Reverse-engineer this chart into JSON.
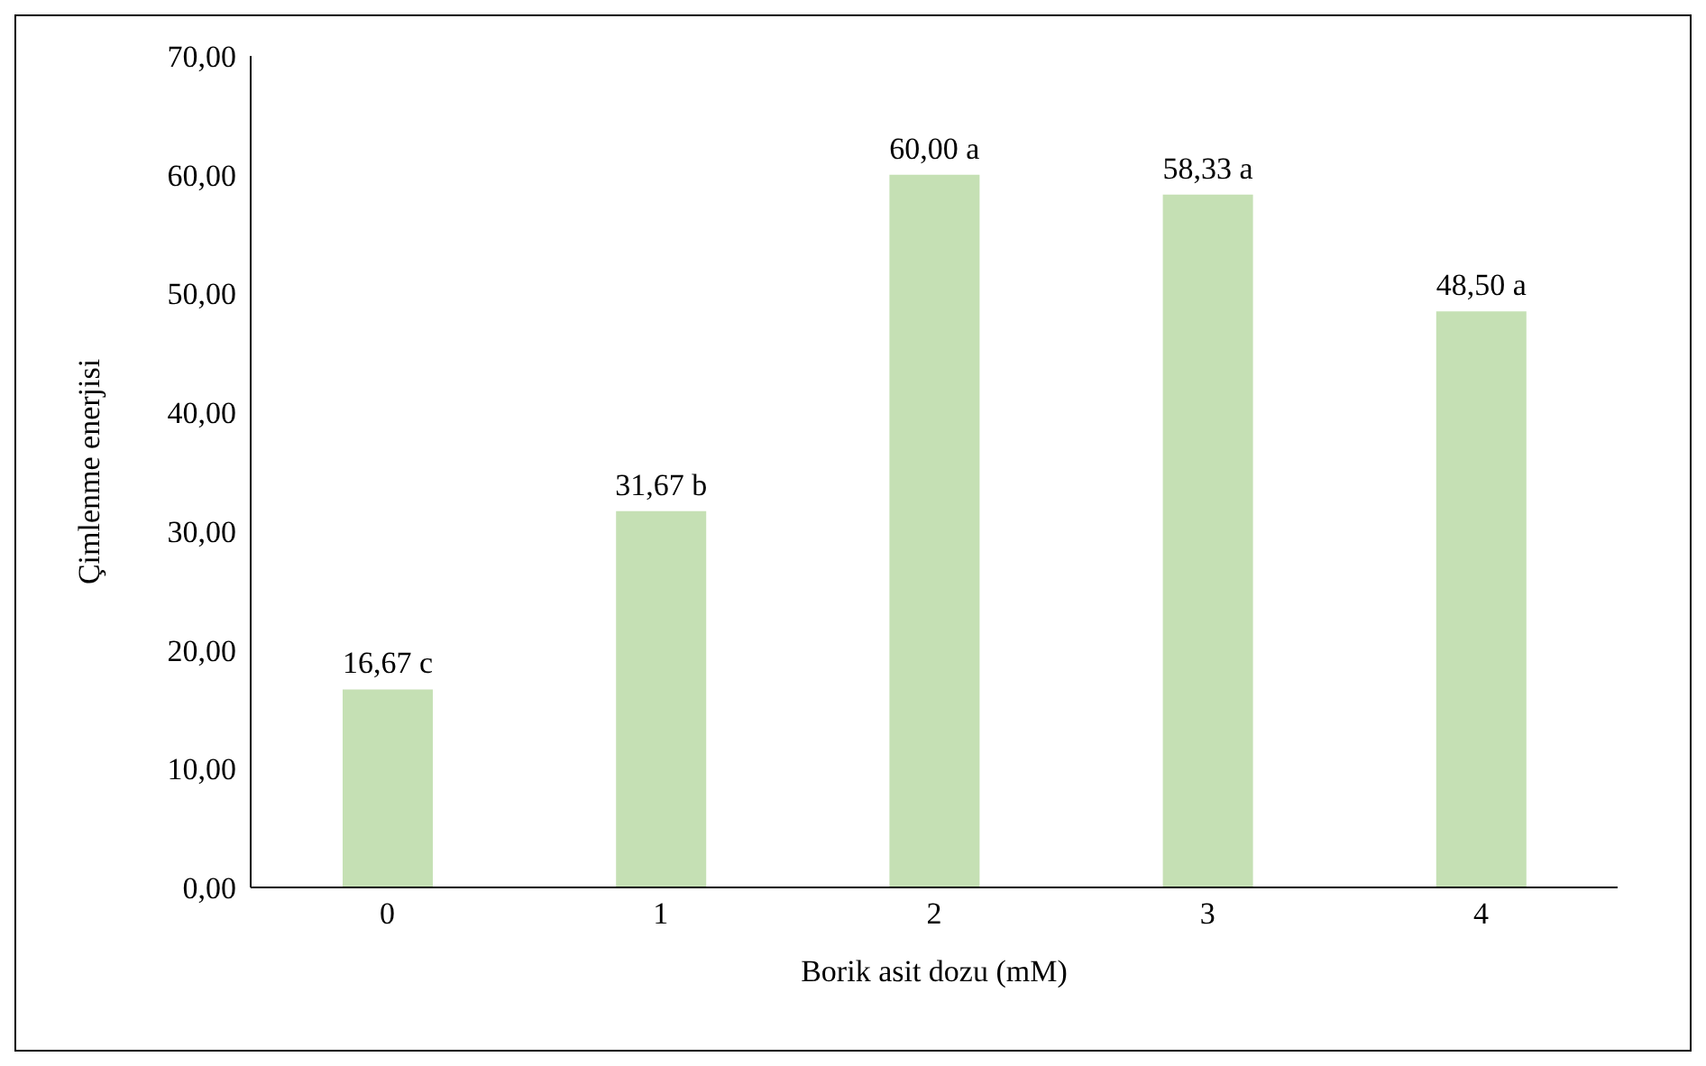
{
  "chart_data": {
    "type": "bar",
    "xlabel": "Borik asit dozu (mM)",
    "ylabel": "Çimlenme enerjisi",
    "categories": [
      "0",
      "1",
      "2",
      "3",
      "4"
    ],
    "values": [
      16.67,
      31.67,
      60.0,
      58.33,
      48.5
    ],
    "color": "#c5e0b4",
    "value_labels": [
      "16,67 c",
      "31,67 b",
      "60,00 a",
      "58,33 a",
      "48,50 a"
    ],
    "ylim": [
      0,
      70
    ],
    "yticks": [
      {
        "value": 0,
        "label": "0,00"
      },
      {
        "value": 10,
        "label": "10,00"
      },
      {
        "value": 20,
        "label": "20,00"
      },
      {
        "value": 30,
        "label": "30,00"
      },
      {
        "value": 40,
        "label": "40,00"
      },
      {
        "value": 50,
        "label": "50,00"
      },
      {
        "value": 60,
        "label": "60,00"
      },
      {
        "value": 70,
        "label": "70,00"
      }
    ],
    "grid": false,
    "legend": false
  }
}
